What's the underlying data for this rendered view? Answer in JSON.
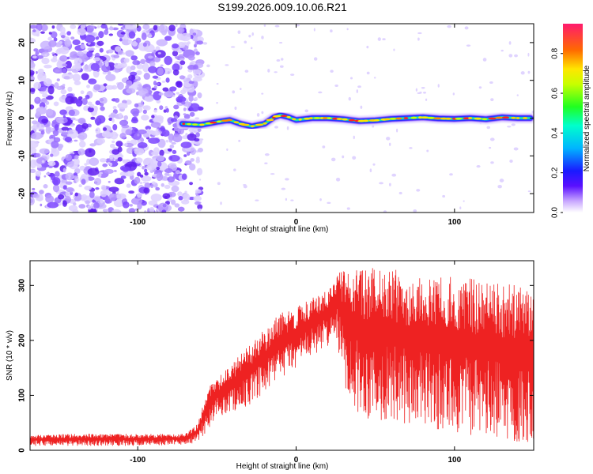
{
  "figure_title": "S199.2026.009.10.06.R21",
  "chart_data": [
    {
      "type": "heatmap",
      "xlabel": "Height of straight line (km)",
      "ylabel": "Frequency (Hz)",
      "xlim": [
        -168,
        150
      ],
      "ylim": [
        -25,
        25
      ],
      "x_ticks": [
        -100,
        0,
        100
      ],
      "y_ticks": [
        -20,
        -10,
        0,
        10,
        20
      ],
      "noise_region_x": [
        -168,
        -65
      ],
      "signal_track": {
        "x": [
          -72,
          -60,
          -50,
          -42,
          -35,
          -28,
          -20,
          -14,
          -10,
          -5,
          0,
          10,
          20,
          30,
          40,
          50,
          60,
          70,
          80,
          90,
          100,
          110,
          120,
          130,
          140,
          148
        ],
        "frequency": [
          -1.5,
          -1.8,
          -1.0,
          -0.5,
          -1.5,
          -2.2,
          -1.5,
          0.2,
          0.8,
          0.3,
          -0.5,
          0.0,
          0.0,
          -0.3,
          -0.8,
          -0.6,
          -0.2,
          0.0,
          0.2,
          -0.1,
          -0.2,
          0.0,
          -0.3,
          0.2,
          0.0,
          0.0
        ]
      },
      "colorbar": {
        "label": "Normalized spectral amplitude",
        "range": [
          0.0,
          0.95
        ],
        "ticks": [
          0.0,
          0.2,
          0.4,
          0.6,
          0.8
        ],
        "tick_labels": [
          "0.0",
          "0.2",
          "0.4",
          "0.6",
          "0.8"
        ]
      }
    },
    {
      "type": "line",
      "xlabel": "Height of straight line (km)",
      "ylabel": "SNR (10 * v/v)",
      "xlim": [
        -168,
        150
      ],
      "ylim": [
        0,
        345
      ],
      "x_ticks": [
        -100,
        0,
        100
      ],
      "y_ticks": [
        0,
        100,
        200,
        300
      ],
      "series": [
        {
          "name": "SNR",
          "color": "#ee2222",
          "envelope_x": [
            -168,
            -140,
            -100,
            -70,
            -62,
            -55,
            -50,
            -40,
            -30,
            -20,
            -10,
            0,
            10,
            20,
            25,
            30,
            40,
            60,
            80,
            100,
            120,
            140,
            150
          ],
          "envelope_low": [
            8,
            8,
            8,
            10,
            15,
            40,
            60,
            70,
            80,
            100,
            130,
            150,
            170,
            190,
            210,
            120,
            60,
            50,
            40,
            30,
            20,
            15,
            15
          ],
          "envelope_high": [
            28,
            30,
            30,
            30,
            50,
            120,
            130,
            160,
            190,
            220,
            250,
            260,
            280,
            290,
            320,
            330,
            335,
            330,
            320,
            315,
            310,
            300,
            295
          ]
        }
      ]
    }
  ]
}
